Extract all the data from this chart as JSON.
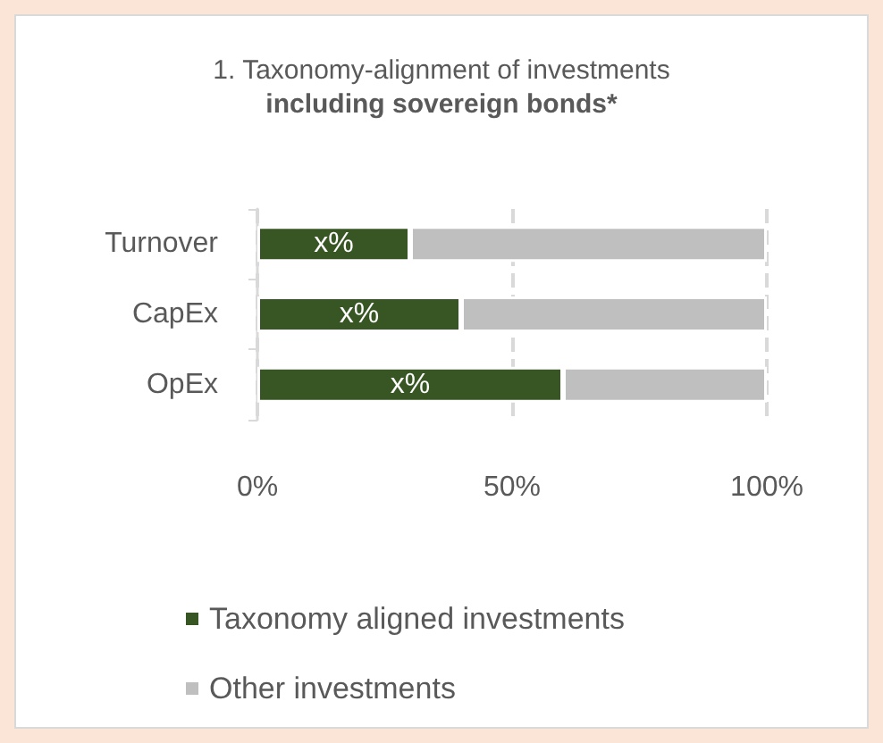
{
  "chart_data": {
    "type": "bar",
    "orientation": "horizontal",
    "stacked": true,
    "title": "1. Taxonomy-alignment of investments",
    "subtitle": "including sovereign bonds*",
    "categories": [
      "Turnover",
      "CapEx",
      "OpEx"
    ],
    "series": [
      {
        "name": "Taxonomy aligned investments",
        "color": "#375623",
        "values": [
          30,
          40,
          60
        ],
        "value_labels": [
          "x%",
          "x%",
          "x%"
        ]
      },
      {
        "name": "Other investments",
        "color": "#bfbfbf",
        "values": [
          70,
          60,
          40
        ]
      }
    ],
    "xlim": [
      0,
      100
    ],
    "xticks": [
      {
        "value": 0,
        "label": "0%"
      },
      {
        "value": 50,
        "label": "50%"
      },
      {
        "value": 100,
        "label": "100%"
      }
    ],
    "grid": "x",
    "legend": "bottom"
  }
}
